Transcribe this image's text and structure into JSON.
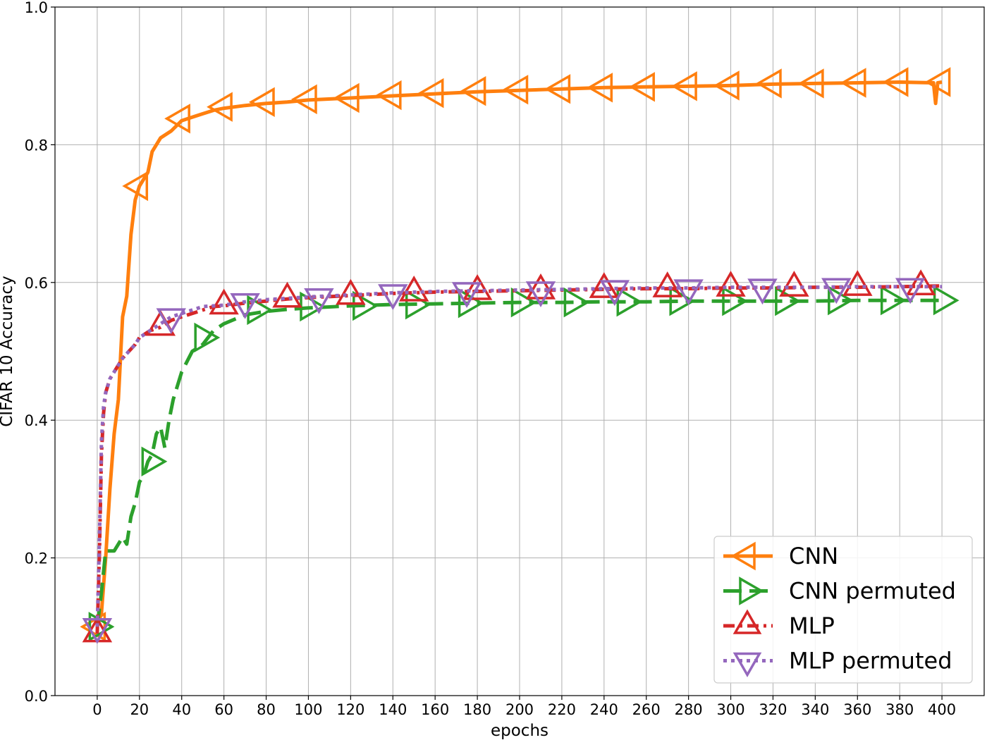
{
  "chart_data": {
    "type": "line",
    "title": "",
    "xlabel": "epochs",
    "ylabel": "CIFAR 10 Accuracy",
    "xlim": [
      -20,
      420
    ],
    "ylim": [
      0.0,
      1.0
    ],
    "x_ticks": [
      0,
      20,
      40,
      60,
      80,
      100,
      120,
      140,
      160,
      180,
      200,
      220,
      240,
      260,
      280,
      300,
      320,
      340,
      360,
      380,
      400
    ],
    "y_ticks": [
      0.0,
      0.2,
      0.4,
      0.6,
      0.8,
      1.0
    ],
    "y_tick_labels": [
      "0.0",
      "0.2",
      "0.4",
      "0.6",
      "0.8",
      "1.0"
    ],
    "grid": true,
    "legend_position": "bottom-right",
    "series": [
      {
        "name": "CNN",
        "color": "#ff7f0e",
        "line_style": "solid",
        "marker": "triangle-left",
        "x": [
          0,
          2,
          4,
          6,
          8,
          10,
          12,
          14,
          16,
          18,
          20,
          22,
          24,
          26,
          28,
          30,
          35,
          40,
          45,
          50,
          55,
          60,
          70,
          80,
          90,
          100,
          120,
          140,
          160,
          180,
          200,
          220,
          240,
          260,
          280,
          300,
          320,
          340,
          360,
          380,
          396,
          397,
          398,
          400
        ],
        "y": [
          0.1,
          0.12,
          0.2,
          0.3,
          0.38,
          0.43,
          0.55,
          0.58,
          0.67,
          0.72,
          0.74,
          0.75,
          0.76,
          0.79,
          0.8,
          0.81,
          0.82,
          0.835,
          0.84,
          0.845,
          0.85,
          0.853,
          0.857,
          0.86,
          0.862,
          0.865,
          0.868,
          0.871,
          0.874,
          0.877,
          0.879,
          0.881,
          0.883,
          0.884,
          0.885,
          0.886,
          0.888,
          0.889,
          0.89,
          0.891,
          0.89,
          0.86,
          0.89,
          0.891
        ],
        "marker_x": [
          0,
          20,
          40,
          60,
          80,
          100,
          120,
          140,
          160,
          180,
          200,
          220,
          240,
          260,
          280,
          300,
          320,
          340,
          360,
          380,
          400
        ],
        "marker_y": [
          0.1,
          0.74,
          0.838,
          0.855,
          0.862,
          0.866,
          0.868,
          0.872,
          0.875,
          0.878,
          0.88,
          0.881,
          0.883,
          0.884,
          0.885,
          0.886,
          0.889,
          0.889,
          0.89,
          0.891,
          0.891
        ]
      },
      {
        "name": "CNN permuted",
        "color": "#2ca02c",
        "line_style": "dashed",
        "marker": "triangle-right",
        "x": [
          0,
          2,
          4,
          6,
          8,
          10,
          12,
          14,
          16,
          18,
          20,
          22,
          24,
          26,
          28,
          30,
          32,
          34,
          36,
          38,
          40,
          45,
          50,
          55,
          60,
          70,
          80,
          90,
          100,
          120,
          140,
          160,
          180,
          200,
          220,
          240,
          260,
          280,
          300,
          320,
          340,
          360,
          380,
          400
        ],
        "y": [
          0.1,
          0.15,
          0.21,
          0.21,
          0.21,
          0.22,
          0.23,
          0.22,
          0.26,
          0.28,
          0.31,
          0.32,
          0.34,
          0.35,
          0.38,
          0.39,
          0.36,
          0.4,
          0.43,
          0.45,
          0.47,
          0.5,
          0.51,
          0.53,
          0.54,
          0.553,
          0.558,
          0.561,
          0.563,
          0.566,
          0.568,
          0.569,
          0.57,
          0.571,
          0.571,
          0.572,
          0.572,
          0.573,
          0.573,
          0.573,
          0.573,
          0.574,
          0.574,
          0.574
        ],
        "marker_x": [
          0,
          25,
          50,
          75,
          100,
          125,
          150,
          175,
          200,
          225,
          250,
          275,
          300,
          325,
          350,
          375,
          400
        ],
        "marker_y": [
          0.1,
          0.34,
          0.52,
          0.56,
          0.565,
          0.566,
          0.568,
          0.57,
          0.571,
          0.571,
          0.572,
          0.573,
          0.573,
          0.573,
          0.574,
          0.574,
          0.574
        ]
      },
      {
        "name": "MLP",
        "color": "#d62728",
        "line_style": "dashdot",
        "marker": "triangle-up",
        "x": [
          0,
          1,
          2,
          3,
          4,
          6,
          8,
          10,
          12,
          15,
          18,
          20,
          25,
          30,
          35,
          40,
          45,
          50,
          55,
          60,
          70,
          80,
          90,
          100,
          120,
          140,
          160,
          180,
          200,
          220,
          240,
          260,
          280,
          300,
          320,
          340,
          360,
          380,
          400
        ],
        "y": [
          0.09,
          0.2,
          0.35,
          0.41,
          0.44,
          0.46,
          0.47,
          0.48,
          0.49,
          0.5,
          0.51,
          0.52,
          0.53,
          0.535,
          0.545,
          0.55,
          0.555,
          0.56,
          0.565,
          0.566,
          0.57,
          0.573,
          0.576,
          0.578,
          0.581,
          0.584,
          0.586,
          0.587,
          0.588,
          0.589,
          0.59,
          0.591,
          0.591,
          0.592,
          0.592,
          0.593,
          0.593,
          0.594,
          0.595
        ],
        "marker_x": [
          0,
          30,
          60,
          90,
          120,
          150,
          180,
          210,
          240,
          270,
          300,
          330,
          360,
          390
        ],
        "marker_y": [
          0.09,
          0.535,
          0.566,
          0.576,
          0.58,
          0.585,
          0.587,
          0.588,
          0.59,
          0.591,
          0.592,
          0.592,
          0.593,
          0.594
        ]
      },
      {
        "name": "MLP permuted",
        "color": "#9467bd",
        "line_style": "dotted",
        "marker": "triangle-down",
        "x": [
          0,
          1,
          2,
          3,
          4,
          6,
          8,
          10,
          12,
          15,
          18,
          20,
          25,
          30,
          35,
          40,
          45,
          50,
          55,
          60,
          70,
          80,
          90,
          100,
          120,
          140,
          160,
          180,
          200,
          220,
          240,
          260,
          280,
          300,
          320,
          340,
          360,
          380,
          400
        ],
        "y": [
          0.1,
          0.22,
          0.37,
          0.42,
          0.44,
          0.46,
          0.47,
          0.48,
          0.49,
          0.5,
          0.51,
          0.52,
          0.53,
          0.54,
          0.55,
          0.555,
          0.56,
          0.565,
          0.566,
          0.567,
          0.572,
          0.575,
          0.577,
          0.579,
          0.582,
          0.585,
          0.587,
          0.588,
          0.589,
          0.59,
          0.591,
          0.592,
          0.592,
          0.593,
          0.593,
          0.593,
          0.594,
          0.594,
          0.594
        ],
        "marker_x": [
          0,
          35,
          70,
          105,
          140,
          175,
          210,
          245,
          280,
          315,
          350,
          385
        ],
        "marker_y": [
          0.1,
          0.55,
          0.572,
          0.579,
          0.585,
          0.588,
          0.589,
          0.591,
          0.592,
          0.593,
          0.594,
          0.594
        ]
      }
    ]
  }
}
